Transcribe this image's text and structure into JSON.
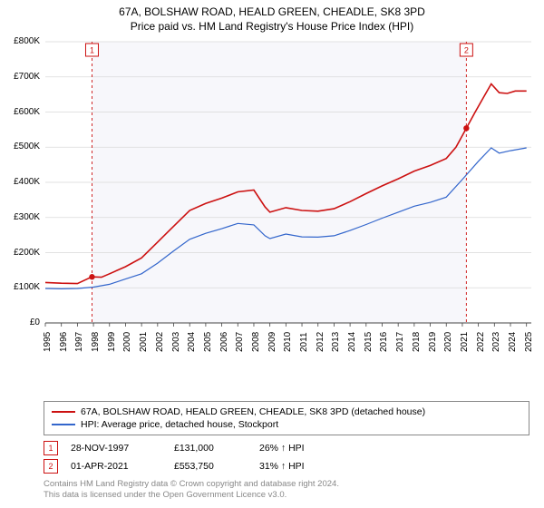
{
  "title_line1": "67A, BOLSHAW ROAD, HEALD GREEN, CHEADLE, SK8 3PD",
  "title_line2": "Price paid vs. HM Land Registry's House Price Index (HPI)",
  "chart": {
    "type": "line",
    "background_color": "#ffffff",
    "plot_bg_highlight": "#f7f7fb",
    "grid_color": "#d9d9d9",
    "axis_color": "#444444",
    "x_years": [
      1995,
      1996,
      1997,
      1998,
      1999,
      2000,
      2001,
      2002,
      2003,
      2004,
      2005,
      2006,
      2007,
      2008,
      2009,
      2010,
      2011,
      2012,
      2013,
      2014,
      2015,
      2016,
      2017,
      2018,
      2019,
      2020,
      2021,
      2022,
      2023,
      2024,
      2025
    ],
    "y_ticks": [
      0,
      100,
      200,
      300,
      400,
      500,
      600,
      700,
      800
    ],
    "y_tick_labels": [
      "£0",
      "£100K",
      "£200K",
      "£300K",
      "£400K",
      "£500K",
      "£600K",
      "£700K",
      "£800K"
    ],
    "ylim": [
      0,
      800
    ],
    "xlim": [
      1995,
      2025.3
    ],
    "series": [
      {
        "name": "price_paid",
        "color": "#cc1111",
        "width": 1.6,
        "points": [
          [
            1995,
            115
          ],
          [
            1996,
            113
          ],
          [
            1997,
            112
          ],
          [
            1997.9,
            131
          ],
          [
            1998.5,
            130
          ],
          [
            1999,
            140
          ],
          [
            2000,
            160
          ],
          [
            2001,
            185
          ],
          [
            2002,
            230
          ],
          [
            2003,
            275
          ],
          [
            2004,
            320
          ],
          [
            2005,
            340
          ],
          [
            2006,
            355
          ],
          [
            2007,
            373
          ],
          [
            2008,
            378
          ],
          [
            2008.7,
            330
          ],
          [
            2009,
            315
          ],
          [
            2010,
            328
          ],
          [
            2011,
            320
          ],
          [
            2012,
            318
          ],
          [
            2013,
            325
          ],
          [
            2014,
            345
          ],
          [
            2015,
            368
          ],
          [
            2016,
            390
          ],
          [
            2017,
            410
          ],
          [
            2018,
            432
          ],
          [
            2019,
            448
          ],
          [
            2020,
            468
          ],
          [
            2020.6,
            500
          ],
          [
            2021.25,
            554
          ],
          [
            2021.8,
            600
          ],
          [
            2022.3,
            640
          ],
          [
            2022.8,
            680
          ],
          [
            2023.3,
            655
          ],
          [
            2023.8,
            653
          ],
          [
            2024.3,
            660
          ],
          [
            2025,
            660
          ]
        ]
      },
      {
        "name": "hpi",
        "color": "#3366cc",
        "width": 1.2,
        "points": [
          [
            1995,
            98
          ],
          [
            1996,
            97
          ],
          [
            1997,
            98
          ],
          [
            1998,
            102
          ],
          [
            1999,
            110
          ],
          [
            2000,
            125
          ],
          [
            2001,
            140
          ],
          [
            2002,
            170
          ],
          [
            2003,
            205
          ],
          [
            2004,
            238
          ],
          [
            2005,
            255
          ],
          [
            2006,
            268
          ],
          [
            2007,
            283
          ],
          [
            2008,
            279
          ],
          [
            2008.7,
            248
          ],
          [
            2009,
            240
          ],
          [
            2010,
            253
          ],
          [
            2011,
            245
          ],
          [
            2012,
            244
          ],
          [
            2013,
            248
          ],
          [
            2014,
            263
          ],
          [
            2015,
            280
          ],
          [
            2016,
            298
          ],
          [
            2017,
            315
          ],
          [
            2018,
            332
          ],
          [
            2019,
            343
          ],
          [
            2020,
            358
          ],
          [
            2021,
            408
          ],
          [
            2022,
            460
          ],
          [
            2022.8,
            498
          ],
          [
            2023.3,
            483
          ],
          [
            2024,
            490
          ],
          [
            2025,
            498
          ]
        ]
      }
    ],
    "sale_markers": [
      {
        "n": "1",
        "x": 1997.91,
        "y": 131,
        "color": "#cc1111"
      },
      {
        "n": "2",
        "x": 2021.25,
        "y": 554,
        "color": "#cc1111"
      }
    ],
    "shade_start": 1997.91,
    "shade_end": 2021.25
  },
  "legend": [
    {
      "color": "#cc1111",
      "label": "67A, BOLSHAW ROAD, HEALD GREEN, CHEADLE, SK8 3PD (detached house)"
    },
    {
      "color": "#3366cc",
      "label": "HPI: Average price, detached house, Stockport"
    }
  ],
  "marker_rows": [
    {
      "n": "1",
      "color": "#cc1111",
      "date": "28-NOV-1997",
      "price": "£131,000",
      "pct": "26% ↑ HPI"
    },
    {
      "n": "2",
      "color": "#cc1111",
      "date": "01-APR-2021",
      "price": "£553,750",
      "pct": "31% ↑ HPI"
    }
  ],
  "attribution_line1": "Contains HM Land Registry data © Crown copyright and database right 2024.",
  "attribution_line2": "This data is licensed under the Open Government Licence v3.0."
}
